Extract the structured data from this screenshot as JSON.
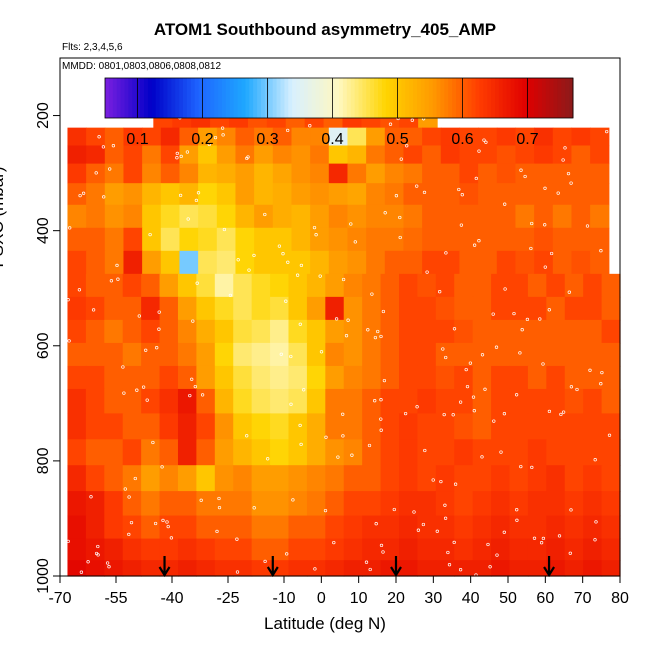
{
  "chart_data": {
    "type": "heatmap",
    "title": "ATOM1 Southbound asymmetry_405_AMP",
    "notes": {
      "flights": "Flts: 2,3,4,5,6",
      "dates": "MMDD: 0801,0803,0806,0808,0812"
    },
    "xlabel": "Latitude (deg N)",
    "ylabel": "PSXC (mbar)",
    "xlim": [
      -70,
      80
    ],
    "ylim": [
      1000,
      100
    ],
    "x_ticks": [
      -70,
      -55,
      -40,
      -25,
      -10,
      0,
      10,
      20,
      30,
      40,
      50,
      60,
      70,
      80
    ],
    "y_ticks": [
      200,
      400,
      600,
      800,
      1000
    ],
    "colorbar": {
      "range": [
        0.05,
        0.77
      ],
      "ticks": [
        0.1,
        0.2,
        0.3,
        0.4,
        0.5,
        0.6,
        0.7
      ],
      "colors": [
        "#7b1fe0",
        "#0000c8",
        "#1e64ff",
        "#1ea8ff",
        "#d8f0ff",
        "#fff8c0",
        "#ffd400",
        "#ff9a00",
        "#ff3c00",
        "#e00000",
        "#8b1a1a"
      ]
    },
    "arrow_latitudes": [
      -42,
      -13,
      20,
      61
    ],
    "layers": [
      {
        "p": 205,
        "x0": -45,
        "x1": 31,
        "v": [
          0.62,
          0.63,
          0.64,
          0.62,
          0.63,
          0.61,
          0.62,
          0.6,
          0.62,
          0.6,
          0.63,
          0.62,
          0.61,
          0.62,
          0.55
        ]
      },
      {
        "p": 237,
        "x0": -68,
        "x1": 77,
        "v": [
          0.64,
          0.62,
          0.6,
          0.63,
          0.62,
          0.65,
          0.6,
          0.55,
          0.57,
          0.6,
          0.58,
          0.6,
          0.57,
          0.57,
          0.35,
          0.45,
          0.55,
          0.6,
          0.6,
          0.62,
          0.63,
          0.62,
          0.62,
          0.63,
          0.62,
          0.64,
          0.62,
          0.63,
          0.62
        ]
      },
      {
        "p": 267,
        "x0": -68,
        "x1": 77,
        "v": [
          0.66,
          0.65,
          0.6,
          0.62,
          0.58,
          0.62,
          0.55,
          0.5,
          0.55,
          0.58,
          0.55,
          0.57,
          0.56,
          0.58,
          0.5,
          0.52,
          0.58,
          0.6,
          0.62,
          0.6,
          0.63,
          0.62,
          0.62,
          0.61,
          0.62,
          0.63,
          0.62,
          0.6,
          0.62
        ]
      },
      {
        "p": 300,
        "x0": -68,
        "x1": 77,
        "v": [
          0.63,
          0.6,
          0.58,
          0.62,
          0.57,
          0.6,
          0.57,
          0.52,
          0.53,
          0.55,
          0.52,
          0.54,
          0.56,
          0.57,
          0.65,
          0.58,
          0.55,
          0.57,
          0.58,
          0.6,
          0.6,
          0.62,
          0.6,
          0.61,
          0.6,
          0.6,
          0.6,
          0.6,
          0.6
        ]
      },
      {
        "p": 335,
        "x0": -68,
        "x1": 77,
        "v": [
          0.6,
          0.58,
          0.55,
          0.56,
          0.52,
          0.5,
          0.52,
          0.48,
          0.5,
          0.55,
          0.52,
          0.53,
          0.55,
          0.56,
          0.55,
          0.54,
          0.57,
          0.58,
          0.6,
          0.6,
          0.6,
          0.61,
          0.6,
          0.6,
          0.6,
          0.6,
          0.6,
          0.6,
          0.6
        ]
      },
      {
        "p": 375,
        "x0": -68,
        "x1": 77,
        "v": [
          0.57,
          0.58,
          0.56,
          0.57,
          0.5,
          0.47,
          0.45,
          0.46,
          0.48,
          0.52,
          0.55,
          0.53,
          0.52,
          0.55,
          0.57,
          0.56,
          0.57,
          0.57,
          0.58,
          0.6,
          0.6,
          0.6,
          0.6,
          0.6,
          0.58,
          0.6,
          0.58,
          0.6,
          0.58
        ]
      },
      {
        "p": 415,
        "x0": -68,
        "x1": 77,
        "v": [
          0.6,
          0.6,
          0.58,
          0.62,
          0.5,
          0.45,
          0.48,
          0.47,
          0.45,
          0.48,
          0.5,
          0.5,
          0.52,
          0.55,
          0.56,
          0.57,
          0.58,
          0.58,
          0.59,
          0.6,
          0.6,
          0.6,
          0.6,
          0.6,
          0.6,
          0.61,
          0.6,
          0.6,
          0.6
        ]
      },
      {
        "p": 455,
        "x0": -68,
        "x1": 77,
        "v": [
          0.62,
          0.6,
          0.58,
          0.66,
          0.55,
          0.5,
          0.3,
          0.45,
          0.44,
          0.48,
          0.5,
          0.5,
          0.5,
          0.52,
          0.55,
          0.56,
          0.58,
          0.6,
          0.6,
          0.62,
          0.62,
          0.6,
          0.6,
          0.62,
          0.61,
          0.62,
          0.6,
          0.61,
          0.6
        ]
      },
      {
        "p": 495,
        "x0": -68,
        "x1": 80,
        "v": [
          0.62,
          0.6,
          0.6,
          0.62,
          0.6,
          0.55,
          0.5,
          0.46,
          0.42,
          0.45,
          0.47,
          0.48,
          0.5,
          0.52,
          0.55,
          0.57,
          0.58,
          0.6,
          0.62,
          0.61,
          0.62,
          0.6,
          0.6,
          0.62,
          0.62,
          0.6,
          0.62,
          0.6,
          0.62,
          0.6
        ]
      },
      {
        "p": 535,
        "x0": -68,
        "x1": 80,
        "v": [
          0.63,
          0.62,
          0.6,
          0.6,
          0.65,
          0.6,
          0.55,
          0.5,
          0.47,
          0.45,
          0.47,
          0.46,
          0.5,
          0.55,
          0.66,
          0.56,
          0.58,
          0.6,
          0.62,
          0.62,
          0.61,
          0.6,
          0.6,
          0.62,
          0.62,
          0.62,
          0.6,
          0.62,
          0.62,
          0.6
        ]
      },
      {
        "p": 575,
        "x0": -68,
        "x1": 80,
        "v": [
          0.62,
          0.6,
          0.58,
          0.6,
          0.62,
          0.6,
          0.57,
          0.53,
          0.5,
          0.46,
          0.45,
          0.43,
          0.47,
          0.5,
          0.55,
          0.56,
          0.58,
          0.6,
          0.62,
          0.62,
          0.62,
          0.61,
          0.6,
          0.6,
          0.6,
          0.6,
          0.6,
          0.6,
          0.6,
          0.62
        ]
      },
      {
        "p": 615,
        "x0": -68,
        "x1": 80,
        "v": [
          0.6,
          0.6,
          0.6,
          0.58,
          0.6,
          0.6,
          0.58,
          0.55,
          0.48,
          0.44,
          0.43,
          0.42,
          0.45,
          0.5,
          0.57,
          0.56,
          0.58,
          0.6,
          0.62,
          0.62,
          0.6,
          0.6,
          0.6,
          0.6,
          0.6,
          0.6,
          0.6,
          0.6,
          0.6,
          0.6
        ]
      },
      {
        "p": 655,
        "x0": -68,
        "x1": 80,
        "v": [
          0.62,
          0.62,
          0.6,
          0.6,
          0.6,
          0.62,
          0.6,
          0.55,
          0.5,
          0.46,
          0.44,
          0.43,
          0.44,
          0.48,
          0.55,
          0.57,
          0.58,
          0.6,
          0.62,
          0.62,
          0.61,
          0.62,
          0.6,
          0.62,
          0.62,
          0.6,
          0.62,
          0.6,
          0.6,
          0.6
        ]
      },
      {
        "p": 695,
        "x0": -68,
        "x1": 80,
        "v": [
          0.64,
          0.62,
          0.6,
          0.6,
          0.62,
          0.64,
          0.67,
          0.6,
          0.52,
          0.47,
          0.45,
          0.44,
          0.45,
          0.5,
          0.58,
          0.58,
          0.6,
          0.62,
          0.62,
          0.63,
          0.62,
          0.62,
          0.6,
          0.62,
          0.62,
          0.62,
          0.62,
          0.61,
          0.62,
          0.6
        ]
      },
      {
        "p": 740,
        "x0": -68,
        "x1": 80,
        "v": [
          0.64,
          0.62,
          0.62,
          0.6,
          0.6,
          0.63,
          0.66,
          0.62,
          0.56,
          0.5,
          0.48,
          0.47,
          0.5,
          0.53,
          0.58,
          0.58,
          0.6,
          0.62,
          0.63,
          0.62,
          0.62,
          0.61,
          0.6,
          0.62,
          0.62,
          0.62,
          0.62,
          0.62,
          0.62,
          0.62
        ]
      },
      {
        "p": 785,
        "x0": -68,
        "x1": 80,
        "v": [
          0.62,
          0.6,
          0.6,
          0.62,
          0.58,
          0.6,
          0.66,
          0.6,
          0.55,
          0.52,
          0.5,
          0.48,
          0.5,
          0.53,
          0.56,
          0.57,
          0.6,
          0.62,
          0.63,
          0.62,
          0.62,
          0.63,
          0.62,
          0.62,
          0.62,
          0.63,
          0.62,
          0.62,
          0.62,
          0.62
        ]
      },
      {
        "p": 830,
        "x0": -68,
        "x1": 80,
        "v": [
          0.65,
          0.62,
          0.6,
          0.58,
          0.55,
          0.57,
          0.55,
          0.5,
          0.56,
          0.57,
          0.55,
          0.55,
          0.56,
          0.57,
          0.58,
          0.6,
          0.6,
          0.62,
          0.63,
          0.62,
          0.63,
          0.62,
          0.62,
          0.63,
          0.62,
          0.63,
          0.64,
          0.62,
          0.63,
          0.62
        ]
      },
      {
        "p": 875,
        "x0": -68,
        "x1": 80,
        "v": [
          0.67,
          0.66,
          0.63,
          0.6,
          0.58,
          0.6,
          0.6,
          0.58,
          0.58,
          0.58,
          0.56,
          0.56,
          0.57,
          0.58,
          0.6,
          0.62,
          0.62,
          0.63,
          0.64,
          0.64,
          0.63,
          0.62,
          0.63,
          0.64,
          0.63,
          0.64,
          0.64,
          0.63,
          0.64,
          0.63
        ]
      },
      {
        "p": 915,
        "x0": -68,
        "x1": 80,
        "v": [
          0.68,
          0.66,
          0.63,
          0.62,
          0.6,
          0.62,
          0.62,
          0.6,
          0.6,
          0.6,
          0.58,
          0.58,
          0.6,
          0.6,
          0.62,
          0.63,
          0.64,
          0.64,
          0.65,
          0.64,
          0.64,
          0.63,
          0.64,
          0.65,
          0.64,
          0.64,
          0.65,
          0.64,
          0.65,
          0.64
        ]
      },
      {
        "p": 955,
        "x0": -68,
        "x1": 80,
        "v": [
          0.68,
          0.67,
          0.66,
          0.64,
          0.63,
          0.63,
          0.64,
          0.63,
          0.62,
          0.62,
          0.6,
          0.6,
          0.62,
          0.62,
          0.63,
          0.64,
          0.65,
          0.65,
          0.66,
          0.65,
          0.65,
          0.64,
          0.65,
          0.66,
          0.65,
          0.65,
          0.66,
          0.65,
          0.66,
          0.65
        ]
      },
      {
        "p": 990,
        "x0": -68,
        "x1": 80,
        "v": [
          0.69,
          0.68,
          0.67,
          0.66,
          0.65,
          0.65,
          0.66,
          0.65,
          0.64,
          0.64,
          0.63,
          0.63,
          0.64,
          0.64,
          0.65,
          0.66,
          0.66,
          0.67,
          0.67,
          0.66,
          0.66,
          0.66,
          0.66,
          0.67,
          0.66,
          0.66,
          0.67,
          0.66,
          0.67,
          0.66
        ]
      }
    ]
  }
}
